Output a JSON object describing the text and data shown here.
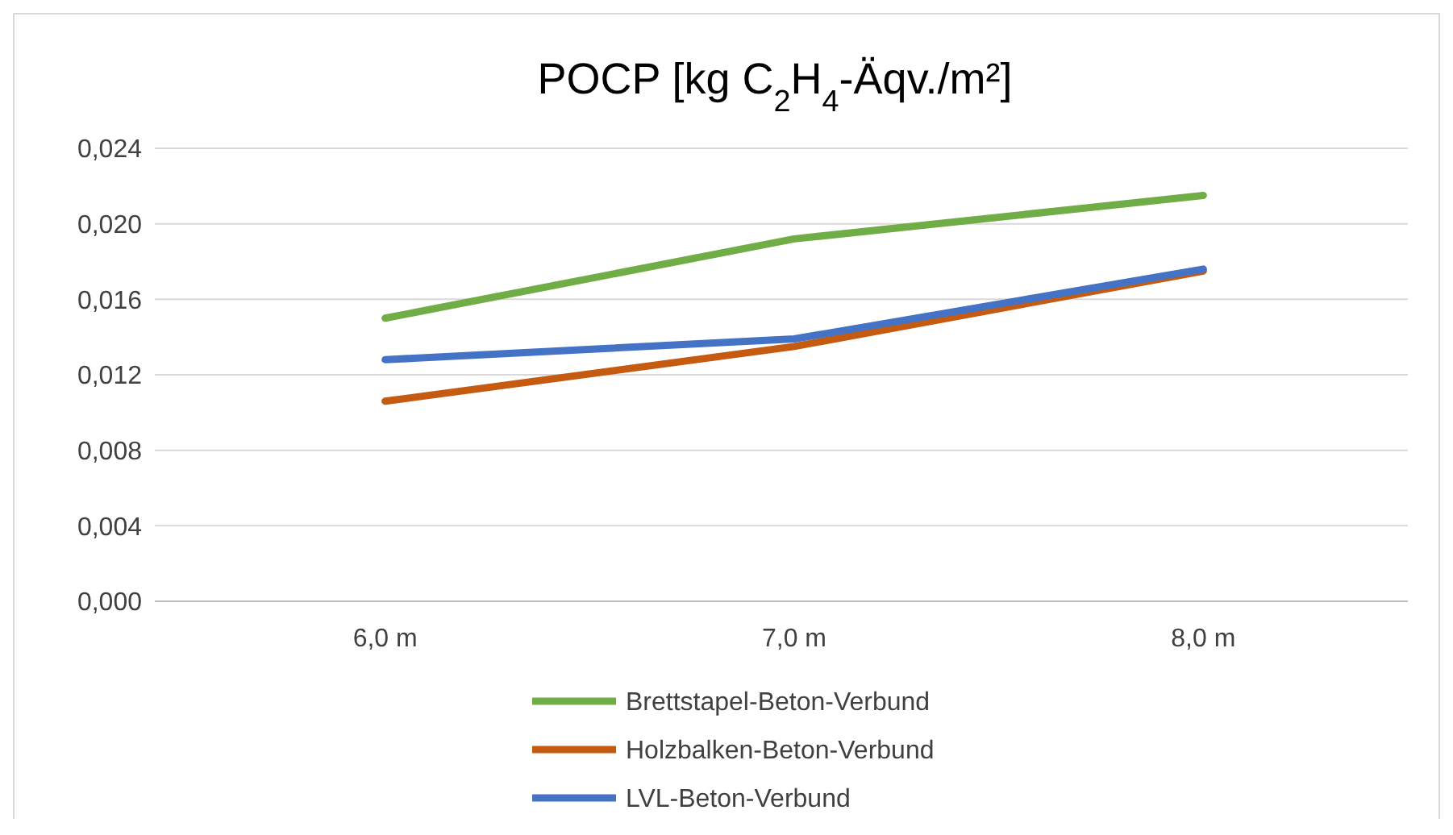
{
  "chart_data": {
    "type": "line",
    "title": "POCP [kg C$_{2}$H$_{4}$-Äqv./m²]",
    "categories": [
      "6,0 m",
      "7,0 m",
      "8,0 m"
    ],
    "series": [
      {
        "name": "Brettstapel-Beton-Verbund",
        "color": "#70ad47",
        "values": [
          0.015,
          0.0192,
          0.0215
        ]
      },
      {
        "name": "Holzbalken-Beton-Verbund",
        "color": "#c55a11",
        "values": [
          0.0106,
          0.0135,
          0.0175
        ]
      },
      {
        "name": "LVL-Beton-Verbund",
        "color": "#4472c4",
        "values": [
          0.0128,
          0.0139,
          0.0176
        ]
      }
    ],
    "ylim": [
      0,
      0.024
    ],
    "yticks": [
      {
        "value": 0,
        "label": "0,000"
      },
      {
        "value": 0.004,
        "label": "0,004"
      },
      {
        "value": 0.008,
        "label": "0,008"
      },
      {
        "value": 0.012,
        "label": "0,012"
      },
      {
        "value": 0.016,
        "label": "0,016"
      },
      {
        "value": 0.02,
        "label": "0,020"
      },
      {
        "value": 0.024,
        "label": "0,024"
      }
    ],
    "grid": "y",
    "legend": "bottom",
    "marker": "none",
    "line_style": "solid"
  }
}
